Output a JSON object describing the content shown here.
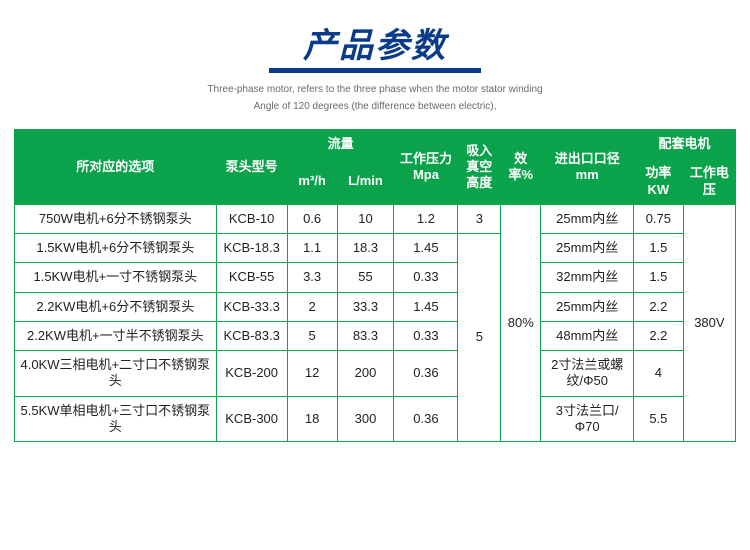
{
  "colors": {
    "title_color": "#0a3b8a",
    "title_underline": "#0a3b8a",
    "header_bg": "#0aa24a",
    "border_color": "#0aa24a",
    "subtitle_color": "#6a6a6a",
    "cell_text": "#222222",
    "background": "#ffffff"
  },
  "title": {
    "chinese": "产品参数",
    "sub_line1": "Three-phase motor, refers to the three phase when the motor stator winding",
    "sub_line2": "Angle of 120 degrees (the difference between electric),"
  },
  "table": {
    "headers": {
      "option": "所对应的选项",
      "pump_model": "泵头型号",
      "flow_group": "流量",
      "flow_m3h": "m³/h",
      "flow_lmin": "L/min",
      "pressure": "工作压力Mpa",
      "suction": "吸入真空高度",
      "efficiency": "效率%",
      "inlet_outlet": "进出口口径mm",
      "motor_group": "配套电机",
      "power_kw": "功率KW",
      "voltage": "工作电压"
    },
    "col_widths": [
      "170",
      "60",
      "42",
      "48",
      "54",
      "36",
      "34",
      "78",
      "42",
      "44"
    ],
    "rows": [
      {
        "option": "750W电机+6分不锈钢泵头",
        "model": "KCB-10",
        "m3h": "0.6",
        "lmin": "10",
        "mpa": "1.2",
        "suction": "3",
        "inlet": "25mm内丝",
        "kw": "0.75"
      },
      {
        "option": "1.5KW电机+6分不锈钢泵头",
        "model": "KCB-18.3",
        "m3h": "1.1",
        "lmin": "18.3",
        "mpa": "1.45",
        "suction": "",
        "inlet": "25mm内丝",
        "kw": "1.5"
      },
      {
        "option": "1.5KW电机+一寸不锈钢泵头",
        "model": "KCB-55",
        "m3h": "3.3",
        "lmin": "55",
        "mpa": "0.33",
        "suction": "",
        "inlet": "32mm内丝",
        "kw": "1.5"
      },
      {
        "option": "2.2KW电机+6分不锈钢泵头",
        "model": "KCB-33.3",
        "m3h": "2",
        "lmin": "33.3",
        "mpa": "1.45",
        "suction": "",
        "inlet": "25mm内丝",
        "kw": "2.2"
      },
      {
        "option": "2.2KW电机+一寸半不锈钢泵头",
        "model": "KCB-83.3",
        "m3h": "5",
        "lmin": "83.3",
        "mpa": "0.33",
        "suction": "",
        "inlet": "48mm内丝",
        "kw": "2.2"
      },
      {
        "option": "4.0KW三相电机+二寸口不锈钢泵头",
        "model": "KCB-200",
        "m3h": "12",
        "lmin": "200",
        "mpa": "0.36",
        "suction": "",
        "inlet": "2寸法兰或螺纹/Φ50",
        "kw": "4"
      },
      {
        "option": "5.5KW单相电机+三寸口不锈钢泵头",
        "model": "KCB-300",
        "m3h": "18",
        "lmin": "300",
        "mpa": "0.36",
        "suction": "",
        "inlet": "3寸法兰口/Φ70",
        "kw": "5.5"
      }
    ],
    "merged": {
      "suction_big": "5",
      "efficiency": "80%",
      "voltage": "380V"
    }
  }
}
